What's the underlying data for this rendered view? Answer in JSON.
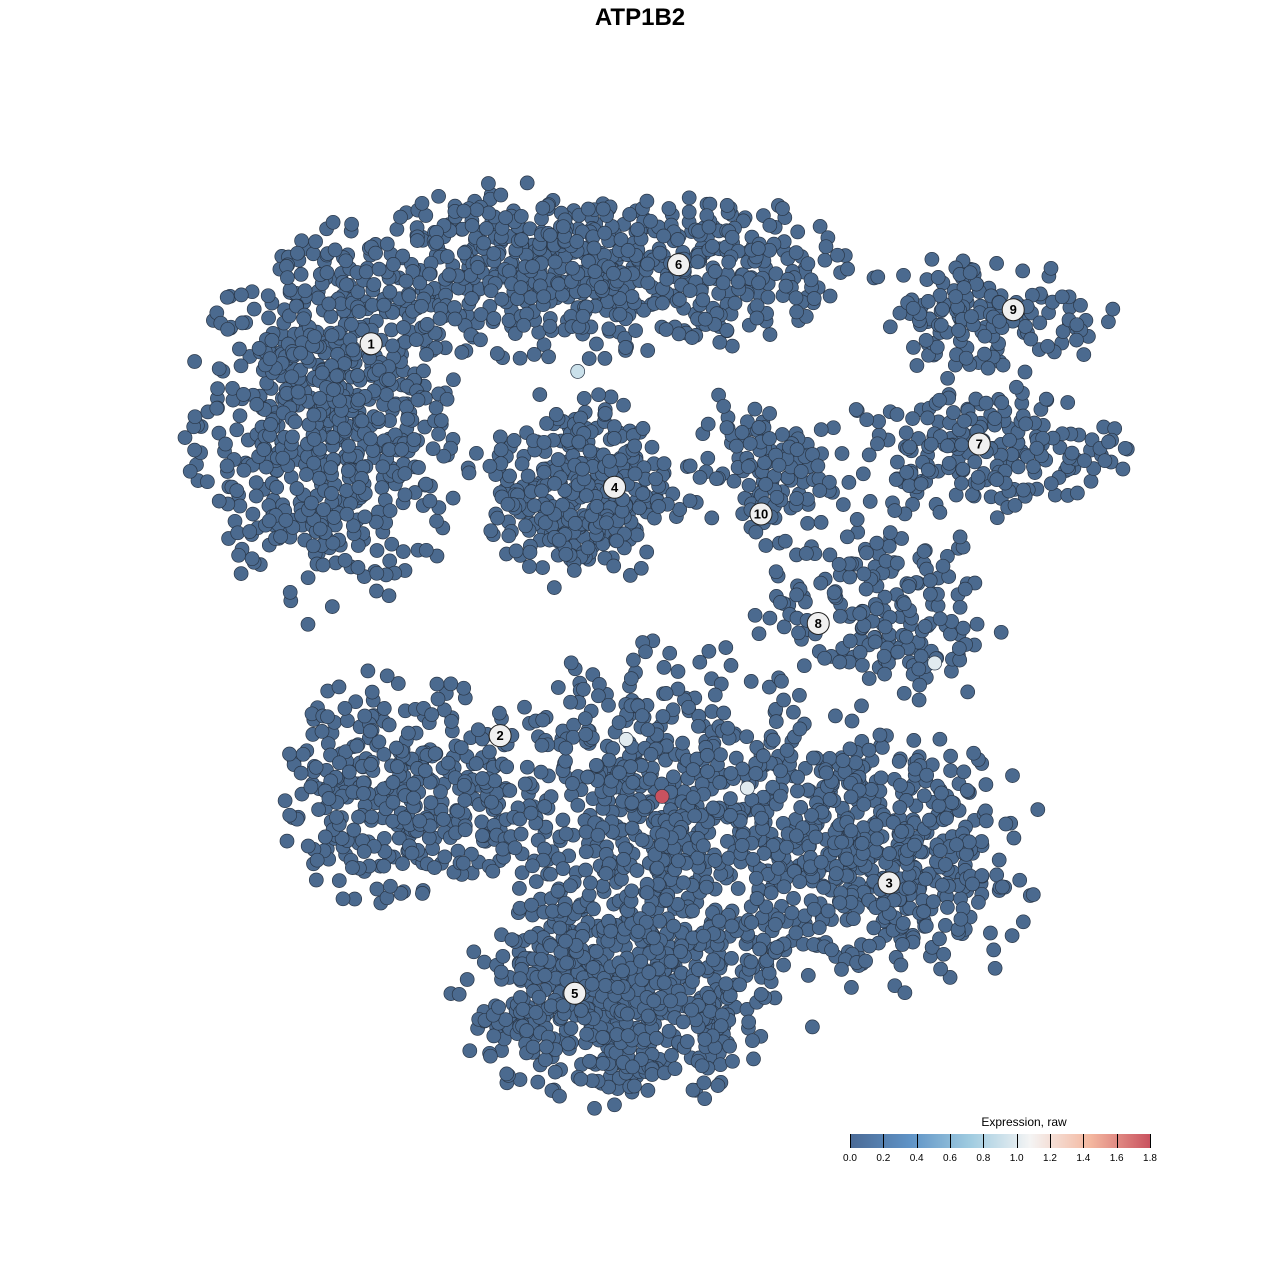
{
  "chart_data": {
    "type": "scatter",
    "title": "ATP1B2",
    "xlabel": "",
    "ylabel": "",
    "axes_visible": false,
    "grid": false,
    "xlim": [
      -50,
      50
    ],
    "ylim": [
      -50,
      50
    ],
    "point_fill_base": "#4b6a8f",
    "point_stroke": "#2a3748",
    "clusters": [
      {
        "label": "1",
        "center": [
          -34.5,
          23.9
        ],
        "spread": [
          6.7,
          9.2
        ],
        "n": 700,
        "label_pos": [
          -30.3,
          32.2
        ]
      },
      {
        "label": "6",
        "center": [
          -8.8,
          40.2
        ],
        "spread": [
          13.4,
          4.3
        ],
        "n": 700,
        "label_pos": [
          1.4,
          40.8
        ]
      },
      {
        "label": "4",
        "center": [
          -8.8,
          16.3
        ],
        "spread": [
          4.6,
          4.9
        ],
        "n": 350,
        "label_pos": [
          -5.2,
          16.6
        ]
      },
      {
        "label": "9",
        "center": [
          33.5,
          35.3
        ],
        "spread": [
          5.7,
          3.3
        ],
        "n": 150,
        "label_pos": [
          35.9,
          35.9
        ]
      },
      {
        "label": "7",
        "center": [
          32.5,
          20.7
        ],
        "spread": [
          7.2,
          3.3
        ],
        "n": 200,
        "label_pos": [
          32.4,
          21.3
        ]
      },
      {
        "label": "10",
        "center": [
          9.8,
          18.5
        ],
        "spread": [
          3.6,
          3.8
        ],
        "n": 120,
        "label_pos": [
          9.9,
          13.7
        ]
      },
      {
        "label": "8",
        "center": [
          22.2,
          3.3
        ],
        "spread": [
          5.7,
          5.4
        ],
        "n": 200,
        "label_pos": [
          15.8,
          1.8
        ]
      },
      {
        "label": "2",
        "center": [
          -27.3,
          -16.3
        ],
        "spread": [
          6.2,
          6.0
        ],
        "n": 350,
        "label_pos": [
          -17.0,
          -10.4
        ]
      },
      {
        "label": "3",
        "center": [
          22.2,
          -23.9
        ],
        "spread": [
          7.7,
          6.5
        ],
        "n": 500,
        "label_pos": [
          23.1,
          -26.4
        ]
      },
      {
        "label": "5",
        "center": [
          -4.6,
          -39.1
        ],
        "spread": [
          7.7,
          5.4
        ],
        "n": 600,
        "label_pos": [
          -9.3,
          -38.4
        ]
      },
      {
        "label": "",
        "center": [
          -0.5,
          -19.6
        ],
        "spread": [
          9.3,
          8.7
        ],
        "n": 700
      }
    ],
    "expressing_points": [
      {
        "x": -9.0,
        "y": 29.2,
        "value": 0.9
      },
      {
        "x": -4.0,
        "y": -10.8,
        "value": 1.0
      },
      {
        "x": 8.5,
        "y": -16.1,
        "value": 1.0
      },
      {
        "x": 27.8,
        "y": -2.5,
        "value": 1.0
      },
      {
        "x": -0.3,
        "y": -17.0,
        "value": 1.8
      }
    ],
    "colorbar": {
      "title": "Expression, raw",
      "min": 0.0,
      "max": 1.8,
      "ticks": [
        "0.0",
        "0.2",
        "0.4",
        "0.6",
        "0.8",
        "1.0",
        "1.2",
        "1.4",
        "1.6",
        "1.8"
      ],
      "colors": [
        "#4a6a96",
        "#5f93c6",
        "#9fcbe0",
        "#f4f4f4",
        "#f4b8a0",
        "#c9525f"
      ],
      "placement": "bottom-right"
    }
  }
}
